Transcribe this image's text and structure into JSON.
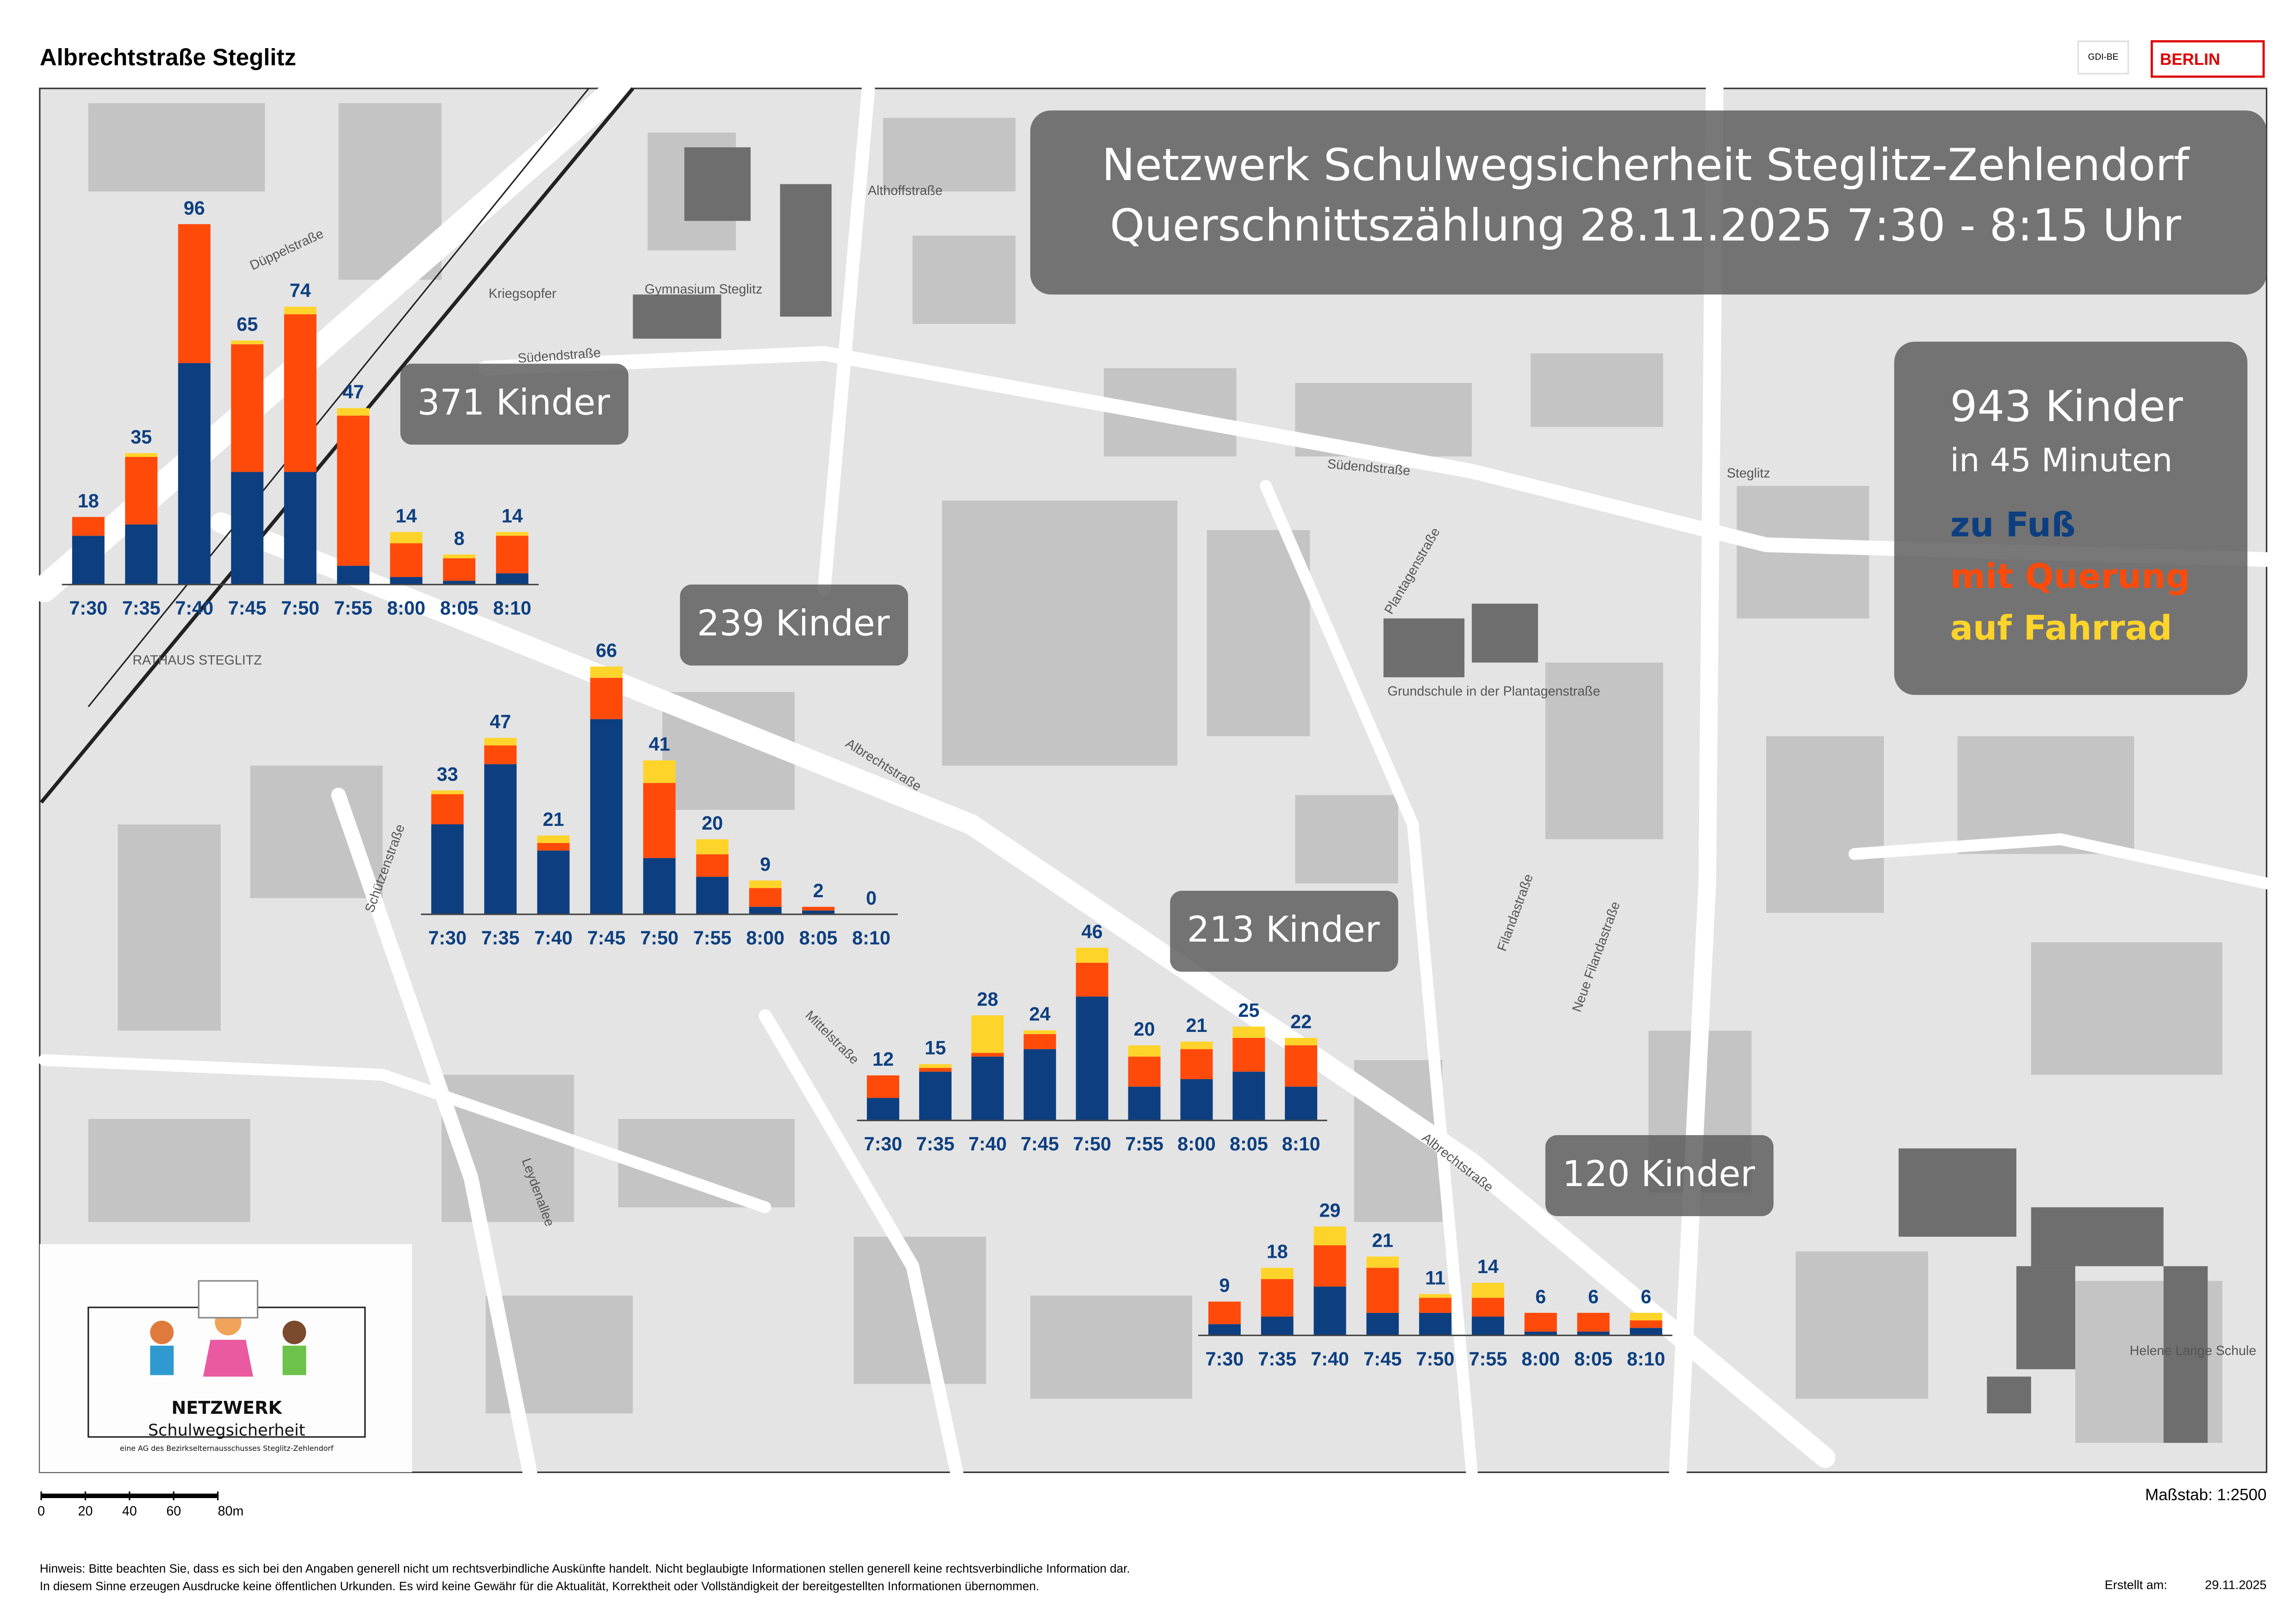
{
  "header": {
    "title": "Albrechtstraße Steglitz",
    "logo_gdi": "GDI-BE",
    "logo_berlin": "BERLIN"
  },
  "headline": {
    "line1": "Netzwerk Schulwegsicherheit Steglitz-Zehlendorf",
    "line2": "Querschnittszählung 28.11.2025 7:30 - 8:15 Uhr"
  },
  "summary": {
    "total": "943 Kinder",
    "duration": "in 45 Minuten"
  },
  "legend": [
    {
      "name": "zu Fuß",
      "color": "#0d3f80"
    },
    {
      "name": "mit Querung",
      "color": "#ff4a0a"
    },
    {
      "name": "auf Fahrrad",
      "color": "#ffd42a"
    }
  ],
  "chart_data": [
    {
      "type": "bar",
      "stacked": true,
      "label": "371 Kinder",
      "categories": [
        "7:30",
        "7:35",
        "7:40",
        "7:45",
        "7:50",
        "7:55",
        "8:00",
        "8:05",
        "8:10"
      ],
      "totals": [
        18,
        35,
        96,
        65,
        74,
        47,
        14,
        8,
        14
      ],
      "series": [
        {
          "values": [
            13,
            16,
            59,
            30,
            30,
            5,
            2,
            1,
            3
          ]
        },
        {
          "values": [
            5,
            18,
            37,
            34,
            42,
            40,
            9,
            6,
            10
          ]
        },
        {
          "values": [
            0,
            1,
            0,
            1,
            2,
            2,
            3,
            1,
            1
          ]
        }
      ]
    },
    {
      "type": "bar",
      "stacked": true,
      "label": "239 Kinder",
      "categories": [
        "7:30",
        "7:35",
        "7:40",
        "7:45",
        "7:50",
        "7:55",
        "8:00",
        "8:05",
        "8:10"
      ],
      "totals": [
        33,
        47,
        21,
        66,
        41,
        20,
        9,
        2,
        0
      ],
      "series": [
        {
          "values": [
            24,
            40,
            17,
            52,
            15,
            10,
            2,
            1,
            0
          ]
        },
        {
          "values": [
            8,
            5,
            2,
            11,
            20,
            6,
            5,
            1,
            0
          ]
        },
        {
          "values": [
            1,
            2,
            2,
            3,
            6,
            4,
            2,
            0,
            0
          ]
        }
      ]
    },
    {
      "type": "bar",
      "stacked": true,
      "label": "213 Kinder",
      "categories": [
        "7:30",
        "7:35",
        "7:40",
        "7:45",
        "7:50",
        "7:55",
        "8:00",
        "8:05",
        "8:10"
      ],
      "totals": [
        12,
        15,
        28,
        24,
        46,
        20,
        21,
        25,
        22
      ],
      "series": [
        {
          "values": [
            6,
            13,
            17,
            19,
            33,
            9,
            11,
            13,
            9
          ]
        },
        {
          "values": [
            6,
            1,
            1,
            4,
            9,
            8,
            8,
            9,
            11
          ]
        },
        {
          "values": [
            0,
            1,
            10,
            1,
            4,
            3,
            2,
            3,
            2
          ]
        }
      ]
    },
    {
      "type": "bar",
      "stacked": true,
      "label": "120 Kinder",
      "categories": [
        "7:30",
        "7:35",
        "7:40",
        "7:45",
        "7:50",
        "7:55",
        "8:00",
        "8:05",
        "8:10"
      ],
      "totals": [
        9,
        18,
        29,
        21,
        11,
        14,
        6,
        6,
        6
      ],
      "series": [
        {
          "values": [
            3,
            5,
            13,
            6,
            6,
            5,
            1,
            1,
            2
          ]
        },
        {
          "values": [
            6,
            10,
            11,
            12,
            4,
            5,
            5,
            5,
            2
          ]
        },
        {
          "values": [
            0,
            3,
            5,
            3,
            1,
            4,
            0,
            0,
            2
          ]
        }
      ]
    }
  ],
  "map_labels": [
    "Albrechtstraße",
    "Albrechtstraße",
    "Südendstraße",
    "Südendstraße",
    "Schützenstraße",
    "Mittelstraße",
    "Plantagenstraße",
    "Filandastraße",
    "Steglitz",
    "Gymnasium Steglitz",
    "Grundschule in der Plantagenstraße",
    "Helene Lange Schule",
    "RATHAUS STEGLITZ",
    "Düppelstraße",
    "Althoffstraße",
    "Kriegsopfer",
    "Leydenallee",
    "Neue Filandastraße"
  ],
  "logo": {
    "name": "NETZWERK",
    "sub": "Schulwegsicherheit",
    "note": "eine AG des Bezirkselternausschusses Steglitz-Zehlendorf"
  },
  "scale_bar": {
    "ticks": [
      0,
      20,
      40,
      60,
      {
        "value": 80,
        "label": "80m"
      }
    ]
  },
  "footer": {
    "scale": "Maßstab: 1:2500",
    "hint1": "Hinweis: Bitte beachten Sie, dass es sich bei den Angaben generell nicht um rechtsverbindliche Auskünfte handelt. Nicht beglaubigte Informationen stellen generell keine rechtsverbindliche Information dar.",
    "hint2": "In diesem Sinne erzeugen Ausdrucke keine öffentlichen Urkunden. Es wird keine Gewähr für die Aktualität, Korrektheit oder Vollständigkeit der bereitgestellten Informationen übernommen.",
    "created_label": "Erstellt am:",
    "created_date": "29.11.2025"
  }
}
